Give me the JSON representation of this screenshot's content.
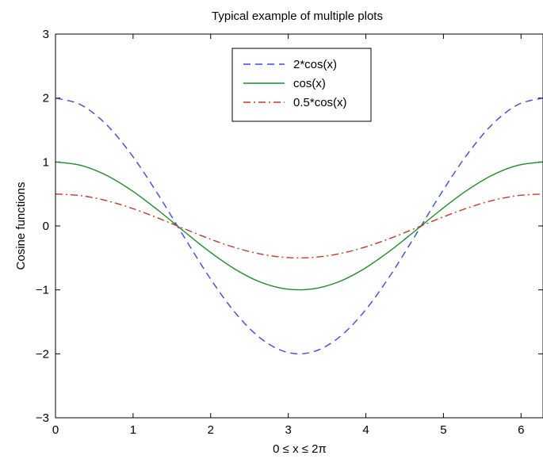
{
  "chart_data": {
    "type": "line",
    "title": "Typical example of multiple plots",
    "xlabel": "0 ≤ x ≤ 2π",
    "ylabel": "Cosine functions",
    "xlim": [
      0,
      6.283185307179586
    ],
    "ylim": [
      -3,
      3
    ],
    "xticks": [
      0,
      1,
      2,
      3,
      4,
      5,
      6
    ],
    "yticks": [
      -3,
      -2,
      -1,
      0,
      1,
      2,
      3
    ],
    "xtick_labels": [
      "0",
      "1",
      "2",
      "3",
      "4",
      "5",
      "6"
    ],
    "ytick_labels": [
      "−3",
      "−2",
      "−1",
      "0",
      "1",
      "2",
      "3"
    ],
    "grid": false,
    "legend_position": "top-center",
    "x": [
      0,
      0.3307,
      0.6614,
      0.9921,
      1.3228,
      1.6535,
      1.9842,
      2.3149,
      2.6456,
      2.9762,
      3.3069,
      3.6376,
      3.9683,
      4.299,
      4.6297,
      4.9604,
      5.2911,
      5.6218,
      5.9525,
      6.2832
    ],
    "series": [
      {
        "name": "2*cos(x)",
        "color": "#3b4bd8",
        "dash": "dashed",
        "values": [
          2.0,
          1.892,
          1.578,
          1.093,
          0.491,
          -0.165,
          -0.803,
          -1.355,
          -1.759,
          -1.973,
          -1.973,
          -1.759,
          -1.355,
          -0.803,
          -0.165,
          0.491,
          1.093,
          1.578,
          1.892,
          2.0
        ]
      },
      {
        "name": "cos(x)",
        "color": "#1f8a2b",
        "dash": "solid",
        "values": [
          1.0,
          0.946,
          0.789,
          0.546,
          0.245,
          -0.082,
          -0.401,
          -0.677,
          -0.88,
          -0.986,
          -0.986,
          -0.88,
          -0.677,
          -0.401,
          -0.082,
          0.245,
          0.546,
          0.789,
          0.946,
          1.0
        ]
      },
      {
        "name": "0.5*cos(x)",
        "color": "#c0392b",
        "dash": "dashdot",
        "values": [
          0.5,
          0.473,
          0.395,
          0.273,
          0.123,
          -0.041,
          -0.201,
          -0.339,
          -0.44,
          -0.493,
          -0.493,
          -0.44,
          -0.339,
          -0.201,
          -0.041,
          0.123,
          0.273,
          0.395,
          0.473,
          0.5
        ]
      }
    ]
  }
}
